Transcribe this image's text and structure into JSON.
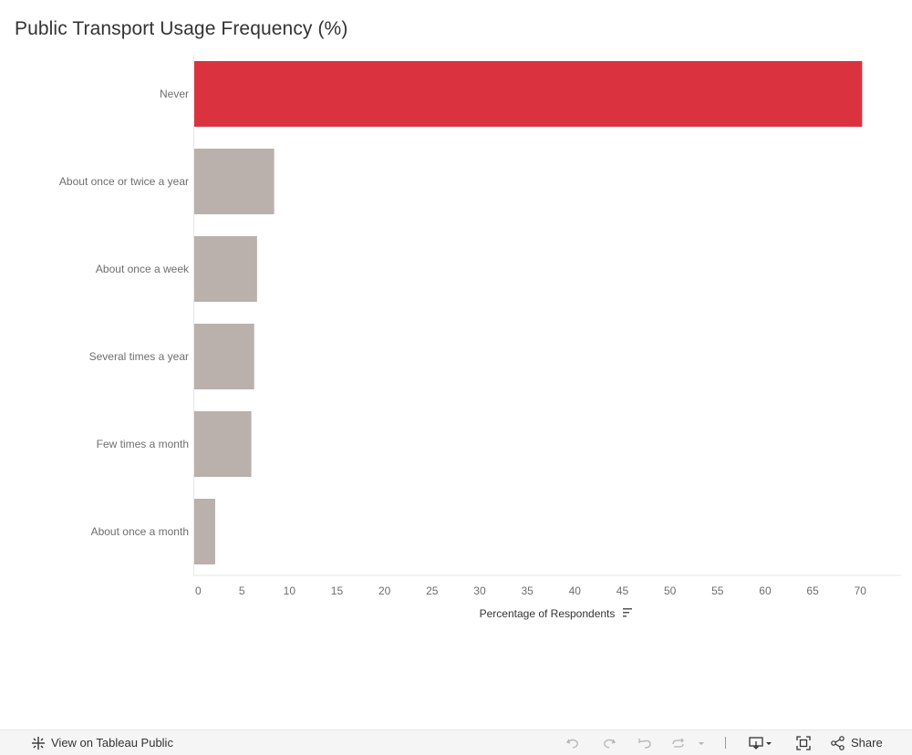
{
  "chart_data": {
    "type": "bar",
    "orientation": "horizontal",
    "title": "Public Transport Usage Frequency (%)",
    "xlabel": "Percentage of Respondents",
    "ylabel": "",
    "xlim": [
      0,
      74
    ],
    "xticks": [
      0,
      5,
      10,
      15,
      20,
      25,
      30,
      35,
      40,
      45,
      50,
      55,
      60,
      65,
      70
    ],
    "categories": [
      "Never",
      "About once or twice a year",
      "About once a week",
      "Several times a year",
      "Few times a month",
      "About once a month"
    ],
    "values": [
      70.2,
      8.4,
      6.6,
      6.3,
      6.0,
      2.2
    ],
    "colors": [
      "#db3240",
      "#bab0ac",
      "#bab0ac",
      "#bab0ac",
      "#bab0ac",
      "#bab0ac"
    ],
    "grid": false,
    "legend": "none"
  },
  "toolbar": {
    "view_label": "View on Tableau Public",
    "share_label": "Share"
  },
  "colors": {
    "highlight": "#db3240",
    "bar": "#bab0ac",
    "axis": "#e6e6e6",
    "toolbar_bg": "#f5f5f5"
  }
}
